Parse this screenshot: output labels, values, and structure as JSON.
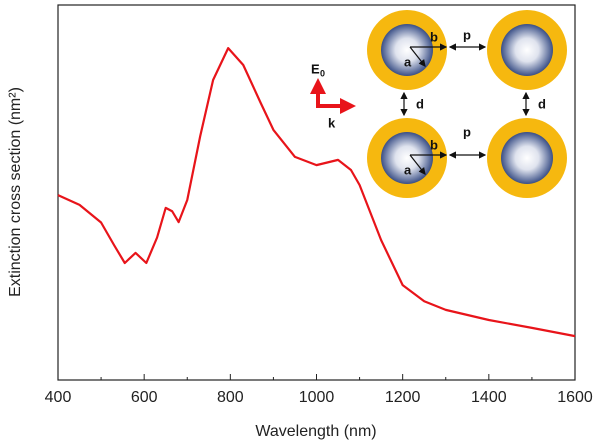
{
  "chart_data": {
    "type": "line",
    "x_label": "Wavelength (nm)",
    "y_label": "Extinction cross section (nm²)",
    "x": [
      400,
      450,
      500,
      530,
      555,
      580,
      605,
      630,
      650,
      665,
      680,
      700,
      730,
      760,
      795,
      830,
      870,
      900,
      950,
      1000,
      1050,
      1080,
      1100,
      1150,
      1200,
      1250,
      1300,
      1400,
      1500,
      1600
    ],
    "series": [
      {
        "color": "#e8141a",
        "values": [
          49.3,
          46.7,
          42,
          36,
          31.2,
          33.9,
          31.2,
          38,
          45.9,
          45,
          42.1,
          48,
          65,
          80,
          88.5,
          84,
          74,
          66.7,
          59.5,
          57.3,
          58.7,
          56,
          52,
          37.3,
          25.3,
          21,
          18.7,
          16,
          13.9,
          11.7
        ]
      }
    ],
    "xlim": [
      400,
      1600
    ],
    "xticks": [
      400,
      600,
      800,
      1000,
      1200,
      1400,
      1600
    ],
    "xminorticks": [
      500,
      700,
      900,
      1100,
      1300,
      1500
    ],
    "ylim": [
      0,
      100
    ],
    "inset": {
      "core_radius": "a",
      "shell_radius": "b",
      "period": "p",
      "spacing": "d",
      "field": "E",
      "field_subscript": "0",
      "wavevector": "k"
    }
  }
}
